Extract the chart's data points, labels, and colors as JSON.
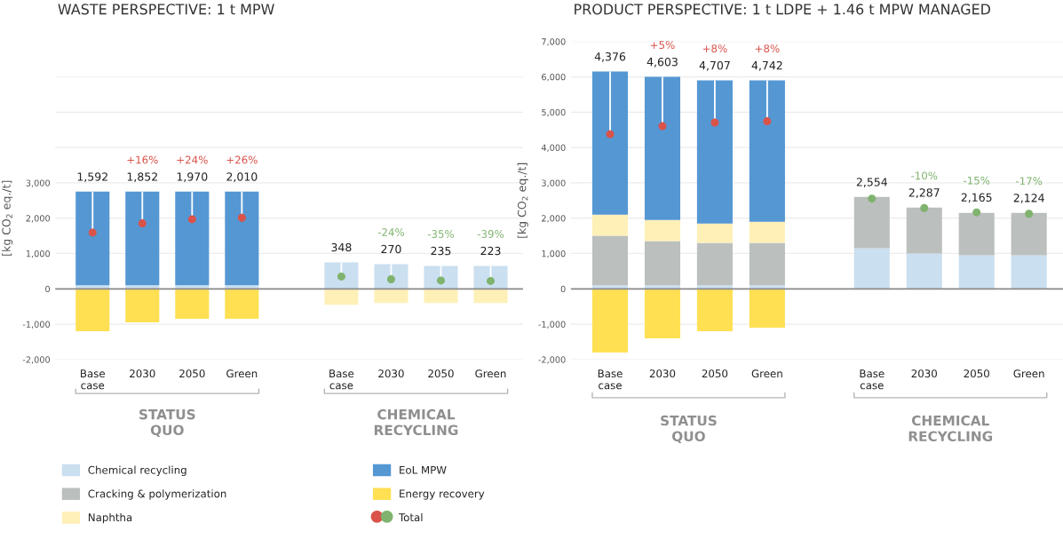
{
  "chart_data": [
    {
      "type": "bar",
      "stacked": true,
      "title": "WASTE PERSPECTIVE: 1 t MPW",
      "ylabel": "[kg CO$_{2}$ eq./t]",
      "categories": [
        "Base case",
        "2030",
        "2050",
        "Green",
        null,
        "Base case",
        "2030",
        "2050",
        "Green"
      ],
      "series": [
        {
          "name": "Chemical recycling",
          "color": "#cadff0",
          "values": [
            100,
            100,
            100,
            100,
            null,
            750,
            700,
            650,
            650
          ]
        },
        {
          "name": "Cracking & polymerization",
          "color": "#bbbfbe",
          "values": [
            null,
            null,
            null,
            null,
            null,
            null,
            null,
            null,
            null
          ]
        },
        {
          "name": "Naphtha",
          "color": "#fff0b8",
          "values": [
            null,
            null,
            null,
            null,
            null,
            -450,
            -400,
            -400,
            -400
          ]
        },
        {
          "name": "EoL MPW",
          "color": "#5597d3",
          "values": [
            2650,
            2650,
            2650,
            2650,
            null,
            null,
            null,
            null,
            null
          ]
        },
        {
          "name": "Energy recovery",
          "color": "#ffe053",
          "values": [
            -1200,
            -950,
            -850,
            -850,
            null,
            null,
            null,
            null,
            null
          ]
        },
        {
          "name": "Total",
          "type": "scatter",
          "colors": [
            "#d9534b",
            "#d9534b",
            "#d9534b",
            "#d9534b",
            null,
            "#7fb36e",
            "#7fb36e",
            "#7fb36e",
            "#7fb36e"
          ],
          "values": [
            1592,
            1852,
            1970,
            2010,
            null,
            348,
            270,
            235,
            223
          ],
          "value_labels": [
            "1,592",
            "1,852",
            "1,970",
            "2,010",
            null,
            "348",
            "270",
            "235",
            "223"
          ]
        }
      ],
      "marker": "circle",
      "ylim": [
        -2000,
        6000
      ],
      "yticks": [
        {
          "value": -2000,
          "label": "-2,000"
        },
        {
          "value": -1000,
          "label": "-1,000"
        },
        0,
        {
          "value": 1000,
          "label": "1,000"
        },
        {
          "value": 2000,
          "label": "2,000"
        },
        {
          "value": 3000,
          "label": "3,000"
        },
        {
          "value": 4000,
          "label": null
        },
        {
          "value": 5000,
          "label": null
        },
        {
          "value": 6000,
          "label": null
        }
      ],
      "grid": "y",
      "legend": "bottom",
      "ref_lines": [
        {
          "axis": "y",
          "value": 0,
          "color": "#8a8a8a"
        }
      ],
      "annotations": [
        "+16%",
        "+24%",
        "+26%",
        "-24%",
        "-35%",
        "-39%",
        "STATUS QUO",
        "CHEMICAL RECYCLING"
      ]
    },
    {
      "type": "bar",
      "stacked": true,
      "title": "PRODUCT PERSPECTIVE: 1 t LDPE + 1.46 t MPW MANAGED",
      "ylabel": "[kg CO$_{2}$ eq./t]",
      "categories": [
        "Base case",
        "2030",
        "2050",
        "Green",
        null,
        "Base case",
        "2030",
        "2050",
        "Green"
      ],
      "series": [
        {
          "color": "#cadff0",
          "values": [
            100,
            100,
            100,
            100,
            null,
            1150,
            1000,
            950,
            950
          ]
        },
        {
          "color": "#bbbfbe",
          "values": [
            1400,
            1250,
            1200,
            1200,
            null,
            1450,
            1300,
            1200,
            1200
          ]
        },
        {
          "color": "#fff0b8",
          "values": [
            600,
            600,
            550,
            600,
            null,
            null,
            null,
            null,
            null
          ]
        },
        {
          "color": "#5597d3",
          "values": [
            4050,
            4050,
            4050,
            4000,
            null,
            null,
            null,
            null,
            null
          ]
        },
        {
          "color": "#ffe053",
          "values": [
            -1800,
            -1400,
            -1200,
            -1100,
            null,
            null,
            null,
            null,
            null
          ]
        },
        {
          "type": "scatter",
          "colors": [
            "#d9534b",
            "#d9534b",
            "#d9534b",
            "#d9534b",
            null,
            "#7fb36e",
            "#7fb36e",
            "#7fb36e",
            "#7fb36e"
          ],
          "values": [
            4376,
            4603,
            4707,
            4742,
            null,
            2554,
            2287,
            2165,
            2124
          ],
          "value_labels": [
            "4,376",
            "4,603",
            "4,707",
            "4,742",
            null,
            "2,554",
            "2,287",
            "2,165",
            "2,124"
          ]
        }
      ],
      "marker": "circle",
      "ylim": [
        -2000,
        7000
      ],
      "yticks": [
        {
          "value": -2000,
          "label": "-2,000"
        },
        {
          "value": -1000,
          "label": "-1,000"
        },
        0,
        {
          "value": 1000,
          "label": "1,000"
        },
        {
          "value": 2000,
          "label": "2,000"
        },
        {
          "value": 3000,
          "label": "3,000"
        },
        {
          "value": 4000,
          "label": "4,000"
        },
        {
          "value": 5000,
          "label": "5,000"
        },
        {
          "value": 6000,
          "label": "6,000"
        },
        {
          "value": 7000,
          "label": "7,000"
        }
      ],
      "grid": "y",
      "ref_lines": [
        {
          "axis": "y",
          "value": 0,
          "color": "#8a8a8a"
        }
      ],
      "annotations": [
        "+5%",
        "+8%",
        "+8%",
        "-10%",
        "-15%",
        "-17%",
        "STATUS QUO",
        "CHEMICAL RECYCLING"
      ]
    }
  ]
}
